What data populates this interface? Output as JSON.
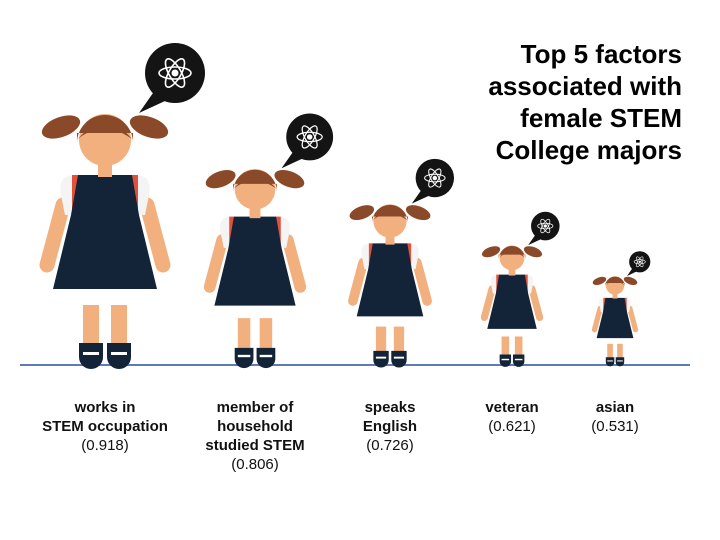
{
  "title_lines": [
    "Top 5 factors",
    "associated with",
    "female STEM",
    "College majors"
  ],
  "chart_data": {
    "type": "bar",
    "title": "Top 5 factors associated with female STEM College majors",
    "categories": [
      "works in STEM occupation",
      "member of household studied STEM",
      "speaks English",
      "veteran",
      "asian"
    ],
    "category_lines": [
      [
        "works in",
        "STEM occupation"
      ],
      [
        "member of",
        "household",
        "studied STEM"
      ],
      [
        "speaks",
        "English"
      ],
      [
        "veteran"
      ],
      [
        "asian"
      ]
    ],
    "values": [
      0.918,
      0.806,
      0.726,
      0.621,
      0.531
    ],
    "value_labels": [
      "(0.918)",
      "(0.806)",
      "(0.726)",
      "(0.621)",
      "(0.531)"
    ],
    "marker": "girl figure with atom speech bubble, size proportional to value"
  },
  "colors": {
    "hair": "#8a4a2a",
    "skin": "#f2b07f",
    "dress": "#132338",
    "shirt": "#f4f4f4",
    "strap": "#e0513b",
    "shoe": "#132338",
    "bubble": "#141414",
    "atom": "#ffffff",
    "baseline": "#5e7bb5"
  }
}
